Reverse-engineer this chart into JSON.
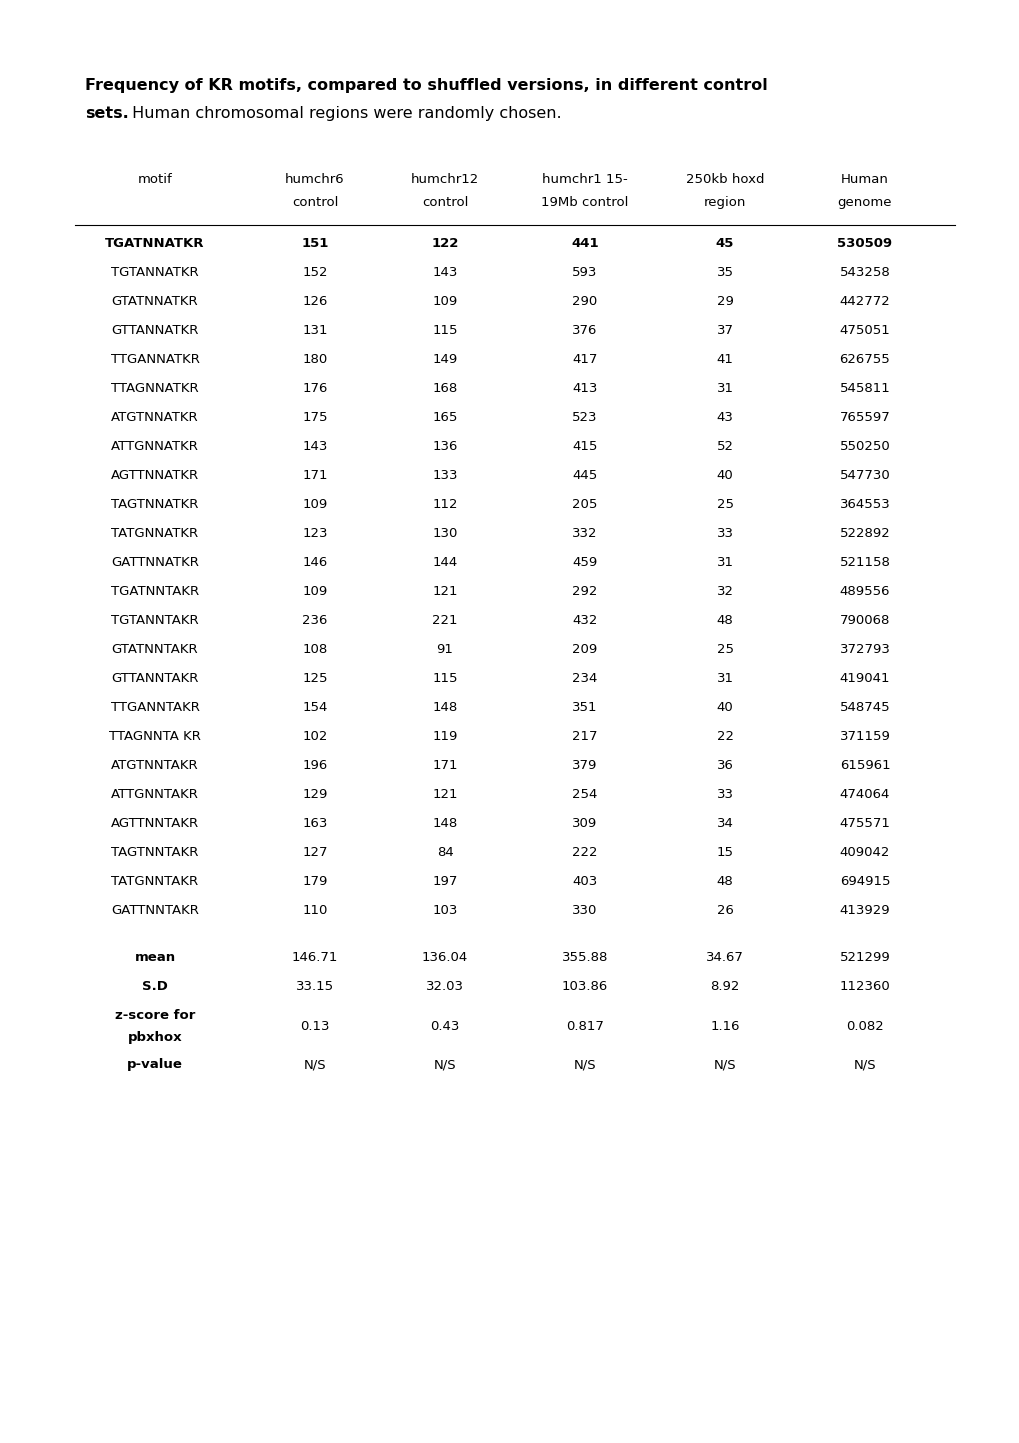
{
  "title_bold": "Frequency of KR motifs, compared to shuffled versions, in different control sets.",
  "title_normal": " Human chromosomal regions were randomly chosen.",
  "title_line1_bold": "Frequency of KR motifs, compared to shuffled versions, in different control",
  "title_line1_normal": "",
  "title_line2_bold": "sets.",
  "title_line2_normal": " Human chromosomal regions were randomly chosen.",
  "col_headers": [
    "motif",
    "humchr6\ncontrol",
    "humchr12\ncontrol",
    "humchr1 15-\n19Mb control",
    "250kb hoxd\nregion",
    "Human\ngenome"
  ],
  "rows": [
    [
      "TGATNNATKR",
      "151",
      "122",
      "441",
      "45",
      "530509",
      true
    ],
    [
      "TGTANNATKR",
      "152",
      "143",
      "593",
      "35",
      "543258",
      false
    ],
    [
      "GTATNNATKR",
      "126",
      "109",
      "290",
      "29",
      "442772",
      false
    ],
    [
      "GTTANNATKR",
      "131",
      "115",
      "376",
      "37",
      "475051",
      false
    ],
    [
      "TTGANNATKR",
      "180",
      "149",
      "417",
      "41",
      "626755",
      false
    ],
    [
      "TTAGNNATKR",
      "176",
      "168",
      "413",
      "31",
      "545811",
      false
    ],
    [
      "ATGTNNATKR",
      "175",
      "165",
      "523",
      "43",
      "765597",
      false
    ],
    [
      "ATTGNNATKR",
      "143",
      "136",
      "415",
      "52",
      "550250",
      false
    ],
    [
      "AGTTNNATKR",
      "171",
      "133",
      "445",
      "40",
      "547730",
      false
    ],
    [
      "TAGTNNATKR",
      "109",
      "112",
      "205",
      "25",
      "364553",
      false
    ],
    [
      "TATGNNATKR",
      "123",
      "130",
      "332",
      "33",
      "522892",
      false
    ],
    [
      "GATTNNATKR",
      "146",
      "144",
      "459",
      "31",
      "521158",
      false
    ],
    [
      "TGATNNTAKR",
      "109",
      "121",
      "292",
      "32",
      "489556",
      false
    ],
    [
      "TGTANNTAKR",
      "236",
      "221",
      "432",
      "48",
      "790068",
      false
    ],
    [
      "GTATNNTAKR",
      "108",
      "91",
      "209",
      "25",
      "372793",
      false
    ],
    [
      "GTTANNTAKR",
      "125",
      "115",
      "234",
      "31",
      "419041",
      false
    ],
    [
      "TTGANNTA KR",
      "154",
      "148",
      "351",
      "40",
      "548745",
      false
    ],
    [
      "TTAGNNTA KR",
      "102",
      "119",
      "217",
      "22",
      "371159",
      false
    ],
    [
      "ATGTNNTAKR",
      "196",
      "171",
      "379",
      "36",
      "615961",
      false
    ],
    [
      "ATTGNNTAKR",
      "129",
      "121",
      "254",
      "33",
      "474064",
      false
    ],
    [
      "AGTTNNTAKR",
      "163",
      "148",
      "309",
      "34",
      "475571",
      false
    ],
    [
      "TAGTNNTAKR",
      "127",
      "84",
      "222",
      "15",
      "409042",
      false
    ],
    [
      "TATGNNTAKR",
      "179",
      "197",
      "403",
      "48",
      "694915",
      false
    ],
    [
      "GATTNNTAKR",
      "110",
      "103",
      "330",
      "26",
      "413929",
      false
    ]
  ],
  "rows_fixed": [
    [
      "TGATNNATKR",
      "151",
      "122",
      "441",
      "45",
      "530509",
      true
    ],
    [
      "TGTANNATKR",
      "152",
      "143",
      "593",
      "35",
      "543258",
      false
    ],
    [
      "GTATNNATKR",
      "126",
      "109",
      "290",
      "29",
      "442772",
      false
    ],
    [
      "GTTANNATKR",
      "131",
      "115",
      "376",
      "37",
      "475051",
      false
    ],
    [
      "TTGANNATKR",
      "180",
      "149",
      "417",
      "41",
      "626755",
      false
    ],
    [
      "TTAGNNATKR",
      "176",
      "168",
      "413",
      "31",
      "545811",
      false
    ],
    [
      "ATGTNNATKR",
      "175",
      "165",
      "523",
      "43",
      "765597",
      false
    ],
    [
      "ATTGNNATKR",
      "143",
      "136",
      "415",
      "52",
      "550250",
      false
    ],
    [
      "AGTTNNATKR",
      "171",
      "133",
      "445",
      "40",
      "547730",
      false
    ],
    [
      "TAGTNNATKR",
      "109",
      "112",
      "205",
      "25",
      "364553",
      false
    ],
    [
      "TATGNNATKR",
      "123",
      "130",
      "332",
      "33",
      "522892",
      false
    ],
    [
      "GATTNNATKR",
      "146",
      "144",
      "459",
      "31",
      "521158",
      false
    ],
    [
      "TGATNNTAKR",
      "109",
      "121",
      "292",
      "32",
      "489556",
      false
    ],
    [
      "TGTANNTAKR",
      "236",
      "221",
      "432",
      "48",
      "790068",
      false
    ],
    [
      "GTATNNTAKR",
      "108",
      "91",
      "209",
      "25",
      "372793",
      false
    ],
    [
      "GTTANNTAKR",
      "125",
      "115",
      "234",
      "31",
      "419041",
      false
    ],
    [
      "TTGANNTAKR",
      "154",
      "148",
      "351",
      "40",
      "548745",
      false
    ],
    [
      "TTAGNNTA KR",
      "102",
      "119",
      "217",
      "22",
      "371159",
      false
    ],
    [
      "ATGTNNTAKR",
      "196",
      "171",
      "379",
      "36",
      "615961",
      false
    ],
    [
      "ATTGNNTAKR",
      "129",
      "121",
      "254",
      "33",
      "474064",
      false
    ],
    [
      "AGTTNNTAKR",
      "163",
      "148",
      "309",
      "34",
      "475571",
      false
    ],
    [
      "TAGTNNTAKR",
      "127",
      "84",
      "222",
      "15",
      "409042",
      false
    ],
    [
      "TATGNNTAKR",
      "179",
      "197",
      "403",
      "48",
      "694915",
      false
    ],
    [
      "GATTNNTAKR",
      "110",
      "103",
      "330",
      "26",
      "413929",
      false
    ]
  ],
  "summary_rows": [
    [
      "mean",
      "146.71",
      "136.04",
      "355.88",
      "34.67",
      "521299",
      false
    ],
    [
      "S.D",
      "33.15",
      "32.03",
      "103.86",
      "8.92",
      "112360",
      false
    ],
    [
      "z-score for\npbxhox",
      "0.13",
      "0.43",
      "0.817",
      "1.16",
      "0.082",
      false
    ],
    [
      "p-value",
      "N/S",
      "N/S",
      "N/S",
      "N/S",
      "N/S",
      false
    ]
  ],
  "background_color": "#ffffff",
  "text_color": "#000000",
  "font_size_table": 9.5,
  "font_size_title": 11.5
}
